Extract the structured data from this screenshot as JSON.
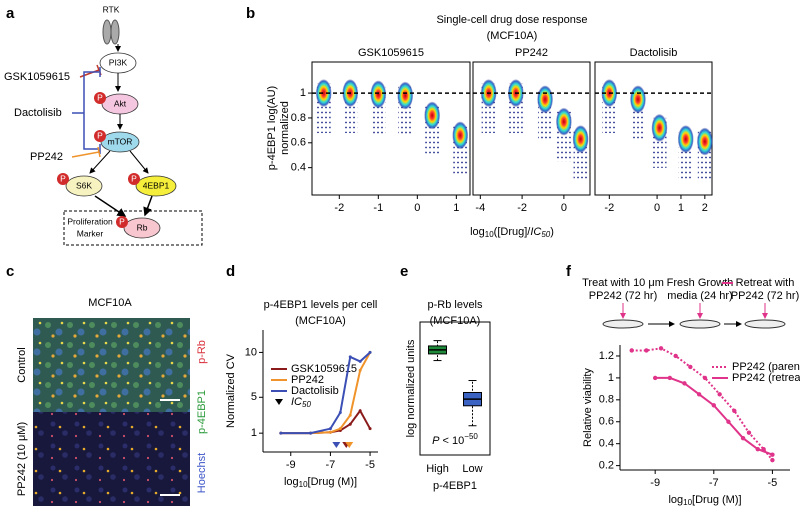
{
  "panel_labels": [
    "a",
    "b",
    "c",
    "d",
    "e",
    "f"
  ],
  "pathway": {
    "receptor": "RTK",
    "nodes": [
      "PI3K",
      "Akt",
      "mTOR",
      "S6K",
      "4EBP1",
      "Rb"
    ],
    "phospho": "P",
    "drugs": [
      {
        "name": "GSK1059615",
        "color": "#c0392b"
      },
      {
        "name": "Dactolisib",
        "color": "#3b4fb5"
      },
      {
        "name": "PP242",
        "color": "#f0932b"
      }
    ],
    "box_label": [
      "Proliferation",
      "Marker"
    ]
  },
  "micrograph": {
    "title": "MCF10A",
    "rows": [
      "Control",
      "PP242 (10 μM)"
    ],
    "channels": [
      {
        "name": "p-Rb",
        "color": "#d9303c"
      },
      {
        "name": "p-4EBP1",
        "color": "#2a9a3a"
      },
      {
        "name": "Hoechst",
        "color": "#3c55c8"
      }
    ]
  },
  "dose_response": {
    "title": "Single-cell drug dose response",
    "subtitle": "(MCF10A)",
    "y_label": [
      "p-4EBP1 log(AU)",
      "normalized"
    ],
    "x_label": [
      "log",
      "10",
      "([Drug]/",
      "IC",
      "50",
      ")"
    ]
  },
  "protocol": [
    [
      "Treat with 10 μm",
      "PP242 (72 hr)"
    ],
    [
      "Fresh Growth",
      "media (24 hr)"
    ],
    [
      "Retreat with",
      "PP242 (72 hr)"
    ]
  ],
  "chart_data": [
    {
      "type": "strip",
      "title": "GSK1059615",
      "x": [
        -2.4,
        -1.72,
        -1.0,
        -0.31,
        0.38,
        1.1
      ],
      "values": [
        1,
        1,
        0.99,
        0.98,
        0.82,
        0.66
      ],
      "xlim": [
        -2.7,
        1.35
      ],
      "xticks": [
        -2,
        -1,
        0,
        1
      ],
      "ylim": [
        0.18,
        1.25
      ],
      "yticks": [
        1,
        0.8,
        0.6,
        0.4
      ],
      "reference_line": 1
    },
    {
      "type": "strip",
      "title": "PP242",
      "x": [
        -3.6,
        -2.3,
        -0.9,
        0,
        0.8
      ],
      "values": [
        1,
        1,
        0.95,
        0.77,
        0.63
      ],
      "xlim": [
        -4.35,
        1.25
      ],
      "xticks": [
        -4,
        -2,
        0
      ],
      "ylim": [
        0.18,
        1.25
      ],
      "reference_line": 1
    },
    {
      "type": "strip",
      "title": "Dactolisib",
      "x": [
        -2,
        -0.8,
        0.1,
        1.2,
        2
      ],
      "values": [
        1,
        0.95,
        0.72,
        0.63,
        0.61
      ],
      "xlim": [
        -2.6,
        2.3
      ],
      "xticks": [
        -2,
        0,
        1,
        2
      ],
      "ylim": [
        0.18,
        1.25
      ],
      "reference_line": 1
    },
    {
      "type": "line",
      "title": "p-4EBP1 levels per cell",
      "subtitle": "(MCF10A)",
      "y_label": "Normalized CV",
      "x_label": [
        "log",
        "10",
        "[Drug (M)]"
      ],
      "x": [
        -9.5,
        -8,
        -7,
        -6.5,
        -6,
        -5.5,
        -5
      ],
      "series": [
        {
          "name": "GSK1059615",
          "color": "#8b1a1a",
          "values": [
            1,
            1,
            1.1,
            1.3,
            2,
            3.5,
            1.5
          ],
          "ic50": -6.2
        },
        {
          "name": "PP242",
          "color": "#f0932b",
          "values": [
            1,
            1,
            1.1,
            1.5,
            3,
            8,
            10
          ],
          "ic50": -6.05
        },
        {
          "name": "Dactolisib",
          "color": "#3b4fb5",
          "values": [
            1,
            1,
            1.5,
            3.3,
            9.5,
            9,
            10
          ],
          "ic50": -6.7
        }
      ],
      "ic50_label": [
        "IC",
        "50"
      ],
      "legend": "center left",
      "xlim": [
        -10.4,
        -4.6
      ],
      "xticks": [
        -9,
        -7,
        -5
      ],
      "ylim": [
        -1.1,
        12.5
      ],
      "yticks": [
        1,
        5,
        10
      ]
    },
    {
      "type": "box",
      "title": "p-Rb levels",
      "subtitle": "(MCF10A)",
      "y_label": "log normalized units",
      "categories": [
        "High",
        "Low"
      ],
      "x_label": "p-4EBP1",
      "colors": [
        "#1e8a3a",
        "#3b63c4"
      ],
      "boxes": [
        {
          "min": 7.1,
          "q1": 7.6,
          "median": 7.9,
          "q3": 8.2,
          "max": 8.6
        },
        {
          "min": 2.2,
          "q1": 3.7,
          "median": 4.2,
          "q3": 4.7,
          "max": 5.6
        }
      ],
      "ylim": [
        0,
        10
      ],
      "annotation": [
        "P",
        " < 10",
        "−50"
      ]
    },
    {
      "type": "line",
      "y_label": "Relative viability",
      "x_label": [
        "log",
        "10",
        "[Drug (M)]"
      ],
      "series": [
        {
          "name": "PP242 (parental)",
          "color": "#e0338a",
          "style": "dotted",
          "x": [
            -9.8,
            -9.3,
            -8.8,
            -8.3,
            -7.8,
            -7.3,
            -6.8,
            -6.3,
            -5.8,
            -5.3,
            -5
          ],
          "values": [
            1.25,
            1.25,
            1.27,
            1.2,
            1.1,
            1.0,
            0.85,
            0.7,
            0.5,
            0.35,
            0.25
          ]
        },
        {
          "name": "PP242 (retreat)",
          "color": "#e0338a",
          "style": "solid",
          "x": [
            -9,
            -8.5,
            -8,
            -7.5,
            -7,
            -6.5,
            -6,
            -5.5,
            -5
          ],
          "values": [
            1.0,
            1.0,
            0.95,
            0.85,
            0.75,
            0.6,
            0.45,
            0.35,
            0.3
          ]
        }
      ],
      "legend": "upper right",
      "xlim": [
        -10.2,
        -4.4
      ],
      "xticks": [
        -9,
        -7,
        -5
      ],
      "ylim": [
        0.16,
        1.3
      ],
      "yticks": [
        0.2,
        0.4,
        0.6,
        0.8,
        1,
        1.2
      ]
    }
  ]
}
